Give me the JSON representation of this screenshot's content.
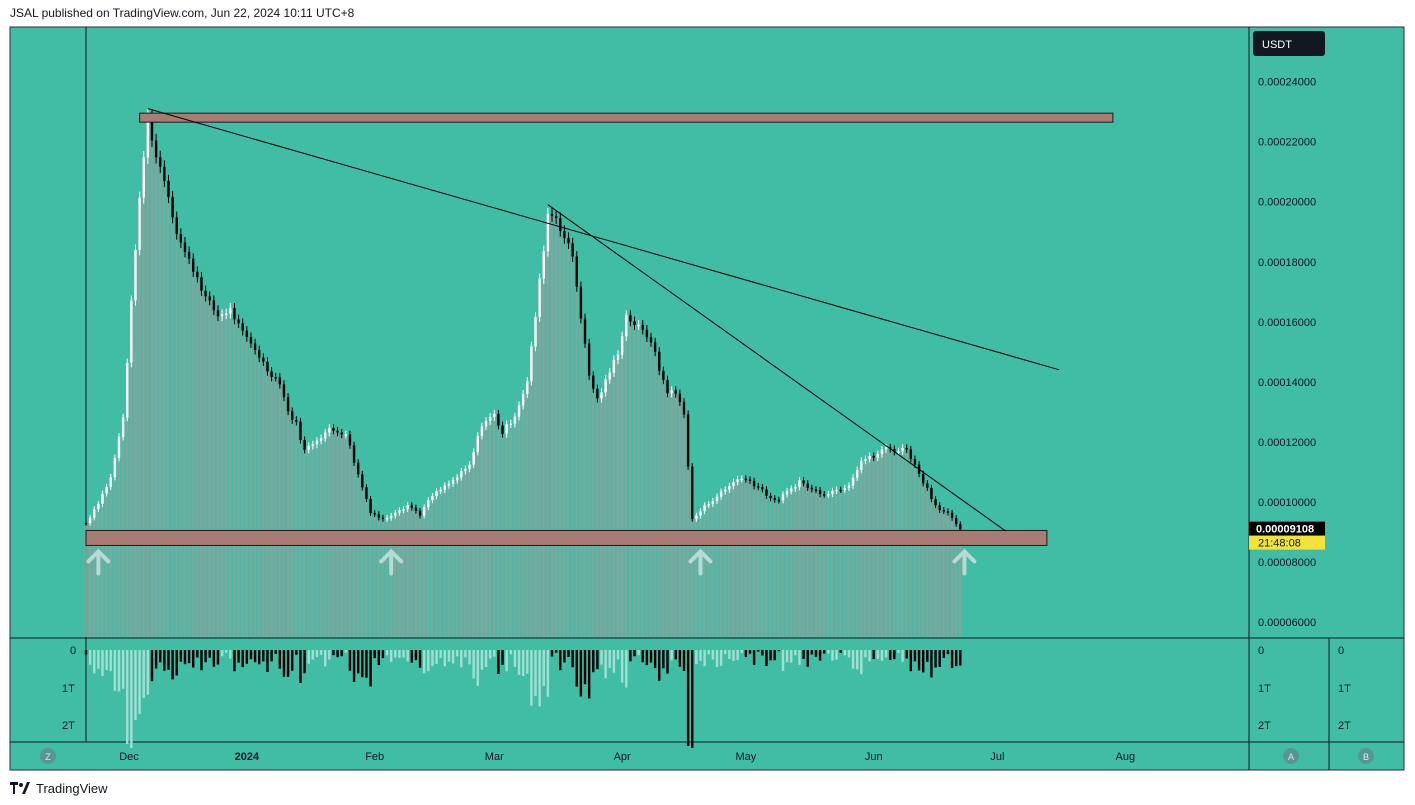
{
  "header": {
    "published": "JSAL published on TradingView.com, Jun 22, 2024 10:11 UTC+8"
  },
  "footer": {
    "brand": "TradingView"
  },
  "colors": {
    "background": "#41BDA6",
    "bar_up": "#ffffff",
    "bar_down": "#000000",
    "bar_history": "#8aa39d",
    "zone_fill": "#A87B73",
    "zone_border": "#1a1a1a",
    "price_tag_bg": "#000000",
    "timer_bg": "#F2E33A",
    "arrow": "#B9D9D3",
    "volume_light": "#9FE0D3"
  },
  "chart_data": {
    "type": "candlestick",
    "symbol_currency": "USDT",
    "y_ticks": [
      "0.00024000",
      "0.00022000",
      "0.00020000",
      "0.00018000",
      "0.00016000",
      "0.00014000",
      "0.00012000",
      "0.00010000",
      "0.00008000",
      "0.00006000"
    ],
    "y_tick_values": [
      0.00024,
      0.00022,
      0.0002,
      0.00018,
      0.00016,
      0.00014,
      0.00012,
      0.0001,
      8e-05,
      6e-05
    ],
    "ylim": [
      5.5e-05,
      0.0002582
    ],
    "x_ticks": [
      "Dec",
      "2024",
      "Feb",
      "Mar",
      "Apr",
      "May",
      "Jun",
      "Jul",
      "Aug"
    ],
    "x_tick_dates": [
      "2023-12-01",
      "2024-01-01",
      "2024-02-01",
      "2024-03-01",
      "2024-04-01",
      "2024-05-01",
      "2024-06-01",
      "2024-07-01",
      "2024-08-01"
    ],
    "x_range": [
      "2023-11-23",
      "2024-08-31"
    ],
    "last_price": "0.00009108",
    "countdown": "21:48:08",
    "close_path": [
      [
        "2023-11-23",
        9.3e-05
      ],
      [
        "2023-11-26",
        0.0001
      ],
      [
        "2023-11-29",
        0.000108
      ],
      [
        "2023-12-02",
        0.000128
      ],
      [
        "2023-12-05",
        0.000185
      ],
      [
        "2023-12-07",
        0.000215
      ],
      [
        "2023-12-08",
        0.000228
      ],
      [
        "2023-12-10",
        0.000215
      ],
      [
        "2023-12-12",
        0.000208
      ],
      [
        "2023-12-15",
        0.00019
      ],
      [
        "2023-12-17",
        0.000183
      ],
      [
        "2023-12-20",
        0.000175
      ],
      [
        "2023-12-22",
        0.000168
      ],
      [
        "2023-12-25",
        0.000162
      ],
      [
        "2023-12-28",
        0.000164
      ],
      [
        "2023-12-31",
        0.000156
      ],
      [
        "2024-01-03",
        0.000151
      ],
      [
        "2024-01-06",
        0.000144
      ],
      [
        "2024-01-09",
        0.00014
      ],
      [
        "2024-01-11",
        0.00013
      ],
      [
        "2024-01-13",
        0.000126
      ],
      [
        "2024-01-15",
        0.000117
      ],
      [
        "2024-01-18",
        0.000121
      ],
      [
        "2024-01-21",
        0.000124
      ],
      [
        "2024-01-25",
        0.000123
      ],
      [
        "2024-01-28",
        0.000109
      ],
      [
        "2024-01-31",
        9.7e-05
      ],
      [
        "2024-02-03",
        9.4e-05
      ],
      [
        "2024-02-06",
        9.7e-05
      ],
      [
        "2024-02-09",
        9.9e-05
      ],
      [
        "2024-02-12",
        9.6e-05
      ],
      [
        "2024-02-15",
        0.000102
      ],
      [
        "2024-02-20",
        0.000107
      ],
      [
        "2024-02-24",
        0.000112
      ],
      [
        "2024-02-27",
        0.000126
      ],
      [
        "2024-03-01",
        0.000129
      ],
      [
        "2024-03-03",
        0.000123
      ],
      [
        "2024-03-06",
        0.000129
      ],
      [
        "2024-03-09",
        0.00014
      ],
      [
        "2024-03-11",
        0.000162
      ],
      [
        "2024-03-14",
        0.000196
      ],
      [
        "2024-03-16",
        0.000195
      ],
      [
        "2024-03-18",
        0.000188
      ],
      [
        "2024-03-20",
        0.000182
      ],
      [
        "2024-03-22",
        0.000162
      ],
      [
        "2024-03-24",
        0.000142
      ],
      [
        "2024-03-26",
        0.000134
      ],
      [
        "2024-03-28",
        0.00014
      ],
      [
        "2024-03-31",
        0.00015
      ],
      [
        "2024-04-02",
        0.000162
      ],
      [
        "2024-04-05",
        0.000158
      ],
      [
        "2024-04-08",
        0.000154
      ],
      [
        "2024-04-10",
        0.000144
      ],
      [
        "2024-04-12",
        0.000137
      ],
      [
        "2024-04-14",
        0.000136
      ],
      [
        "2024-04-16",
        0.00013
      ],
      [
        "2024-04-18",
        9.4e-05
      ],
      [
        "2024-04-20",
        9.7e-05
      ],
      [
        "2024-04-23",
        0.000101
      ],
      [
        "2024-04-26",
        0.000104
      ],
      [
        "2024-04-29",
        0.000108
      ],
      [
        "2024-05-02",
        0.000107
      ],
      [
        "2024-05-05",
        0.000104
      ],
      [
        "2024-05-08",
        0.0001
      ],
      [
        "2024-05-11",
        0.000103
      ],
      [
        "2024-05-14",
        0.000107
      ],
      [
        "2024-05-17",
        0.000104
      ],
      [
        "2024-05-20",
        0.000103
      ],
      [
        "2024-05-23",
        0.000104
      ],
      [
        "2024-05-26",
        0.000106
      ],
      [
        "2024-05-29",
        0.000114
      ],
      [
        "2024-06-01",
        0.000115
      ],
      [
        "2024-06-04",
        0.000118
      ],
      [
        "2024-06-07",
        0.000117
      ],
      [
        "2024-06-09",
        0.000118
      ],
      [
        "2024-06-11",
        0.000112
      ],
      [
        "2024-06-13",
        0.000107
      ],
      [
        "2024-06-16",
        9.9e-05
      ],
      [
        "2024-06-19",
        9.6e-05
      ],
      [
        "2024-06-21",
        9.2e-05
      ],
      [
        "2024-06-22",
        9.11e-05
      ]
    ],
    "resistance_zone": {
      "from": "2023-12-06",
      "to": "2024-07-29",
      "low": 0.0002265,
      "high": 0.0002295
    },
    "support_zone": {
      "from": "2023-11-23",
      "to": "2024-07-13",
      "low": 8.55e-05,
      "high": 9.05e-05
    },
    "trendlines": [
      {
        "from": [
          "2023-12-08",
          0.000231
        ],
        "to": [
          "2024-07-16",
          0.000144
        ]
      },
      {
        "from": [
          "2024-03-14",
          0.000199
        ],
        "to": [
          "2024-07-03",
          9.03e-05
        ]
      }
    ],
    "bounce_arrows": [
      "2023-11-26",
      "2024-02-05",
      "2024-04-20",
      "2024-06-23"
    ],
    "volume_panel": {
      "labels": [
        "0",
        "1T",
        "2T"
      ],
      "values_T": [
        0,
        1,
        2
      ]
    }
  },
  "buttons": {
    "left": "Z",
    "right_a": "A",
    "right_b": "B"
  }
}
